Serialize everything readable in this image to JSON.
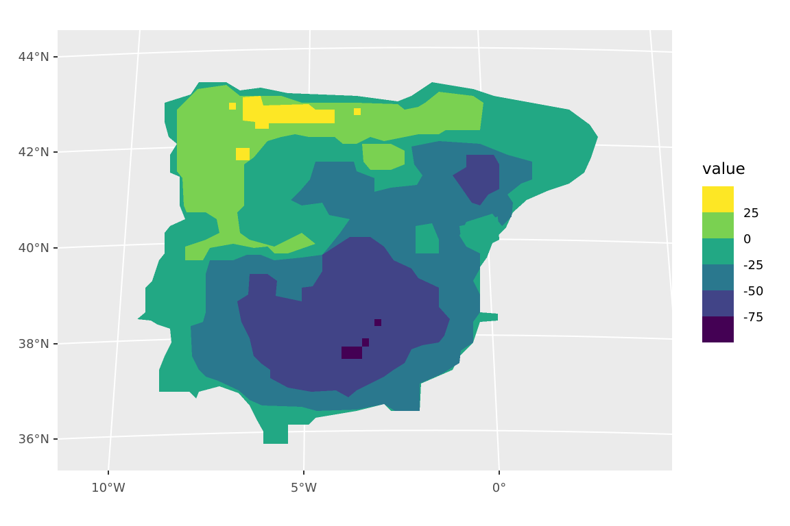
{
  "figure": {
    "type": "raster-map",
    "background": "#ebebeb",
    "grid_color": "#ffffff",
    "y_axis": {
      "ticks": [
        {
          "label": "44°N",
          "value": 44
        },
        {
          "label": "42°N",
          "value": 42
        },
        {
          "label": "40°N",
          "value": 40
        },
        {
          "label": "38°N",
          "value": 38
        },
        {
          "label": "36°N",
          "value": 36
        }
      ]
    },
    "x_axis": {
      "ticks": [
        {
          "label": "10°W",
          "value": -10
        },
        {
          "label": "5°W",
          "value": -5
        },
        {
          "label": "0°",
          "value": 0
        }
      ]
    },
    "legend": {
      "title": "value",
      "position": "right",
      "bins": [
        {
          "color": "#fde725"
        },
        {
          "color": "#7ad151"
        },
        {
          "color": "#22a884"
        },
        {
          "color": "#2a788e"
        },
        {
          "color": "#414487"
        },
        {
          "color": "#440154"
        }
      ],
      "breaks": [
        "25",
        "0",
        "-25",
        "-50",
        "-75"
      ]
    }
  }
}
